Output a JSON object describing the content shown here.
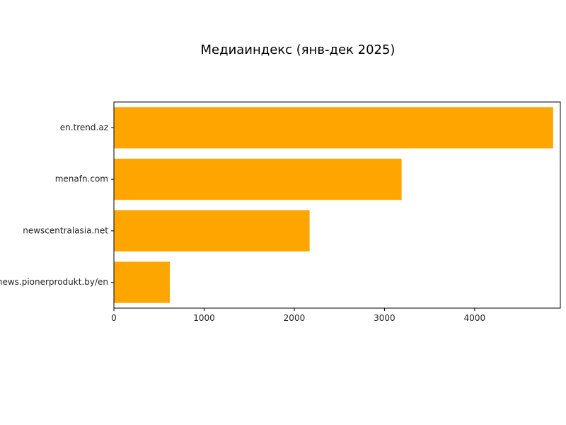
{
  "chart_data": {
    "type": "bar",
    "orientation": "horizontal",
    "title": "Медиаиндекс (янв-дек 2025)",
    "xlabel": "",
    "ylabel": "",
    "categories": [
      "en.trend.az",
      "menafn.com",
      "newscentralasia.net",
      "news.pionerprodukt.by/en"
    ],
    "values": [
      4870,
      3190,
      2170,
      620
    ],
    "xlim": [
      0,
      4950
    ],
    "xticks": [
      0,
      1000,
      2000,
      3000,
      4000
    ],
    "xtick_labels": [
      "0",
      "1000",
      "2000",
      "3000",
      "4000"
    ],
    "bar_color": "#FFA500",
    "grid": false,
    "legend": "none"
  }
}
